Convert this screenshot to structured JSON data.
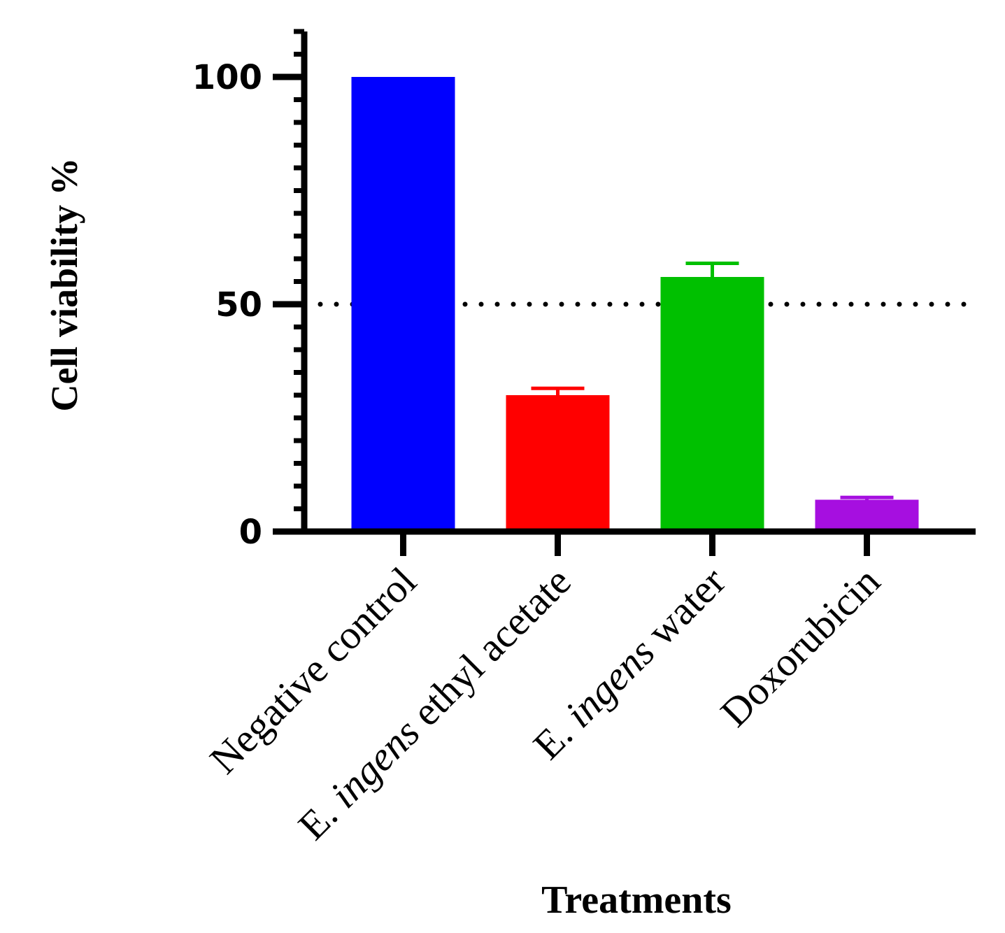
{
  "chart_data": {
    "type": "bar",
    "xlabel": "Treatments",
    "ylabel": "Cell viability %",
    "ylim": [
      0,
      110
    ],
    "major_ticks": [
      0,
      50,
      100
    ],
    "minor_tick_step": 5,
    "reference_line": {
      "value": 50,
      "style": "dotted",
      "color": "#000000"
    },
    "categories": [
      {
        "label_plain": "Negative control",
        "label_italic": "",
        "label_rest": "",
        "value": 100,
        "error": 0,
        "color": "#0000ff"
      },
      {
        "label_plain": "E. ",
        "label_italic": "ingens",
        "label_rest": " ethyl acetate",
        "value": 30,
        "error": 1.5,
        "color": "#ff0000"
      },
      {
        "label_plain": "E. ",
        "label_italic": "ingens",
        "label_rest": " water",
        "value": 56,
        "error": 3,
        "color": "#00c000"
      },
      {
        "label_plain": "Doxorubicin",
        "label_italic": "",
        "label_rest": "",
        "value": 7,
        "error": 0.5,
        "color": "#a60fe0"
      }
    ]
  }
}
